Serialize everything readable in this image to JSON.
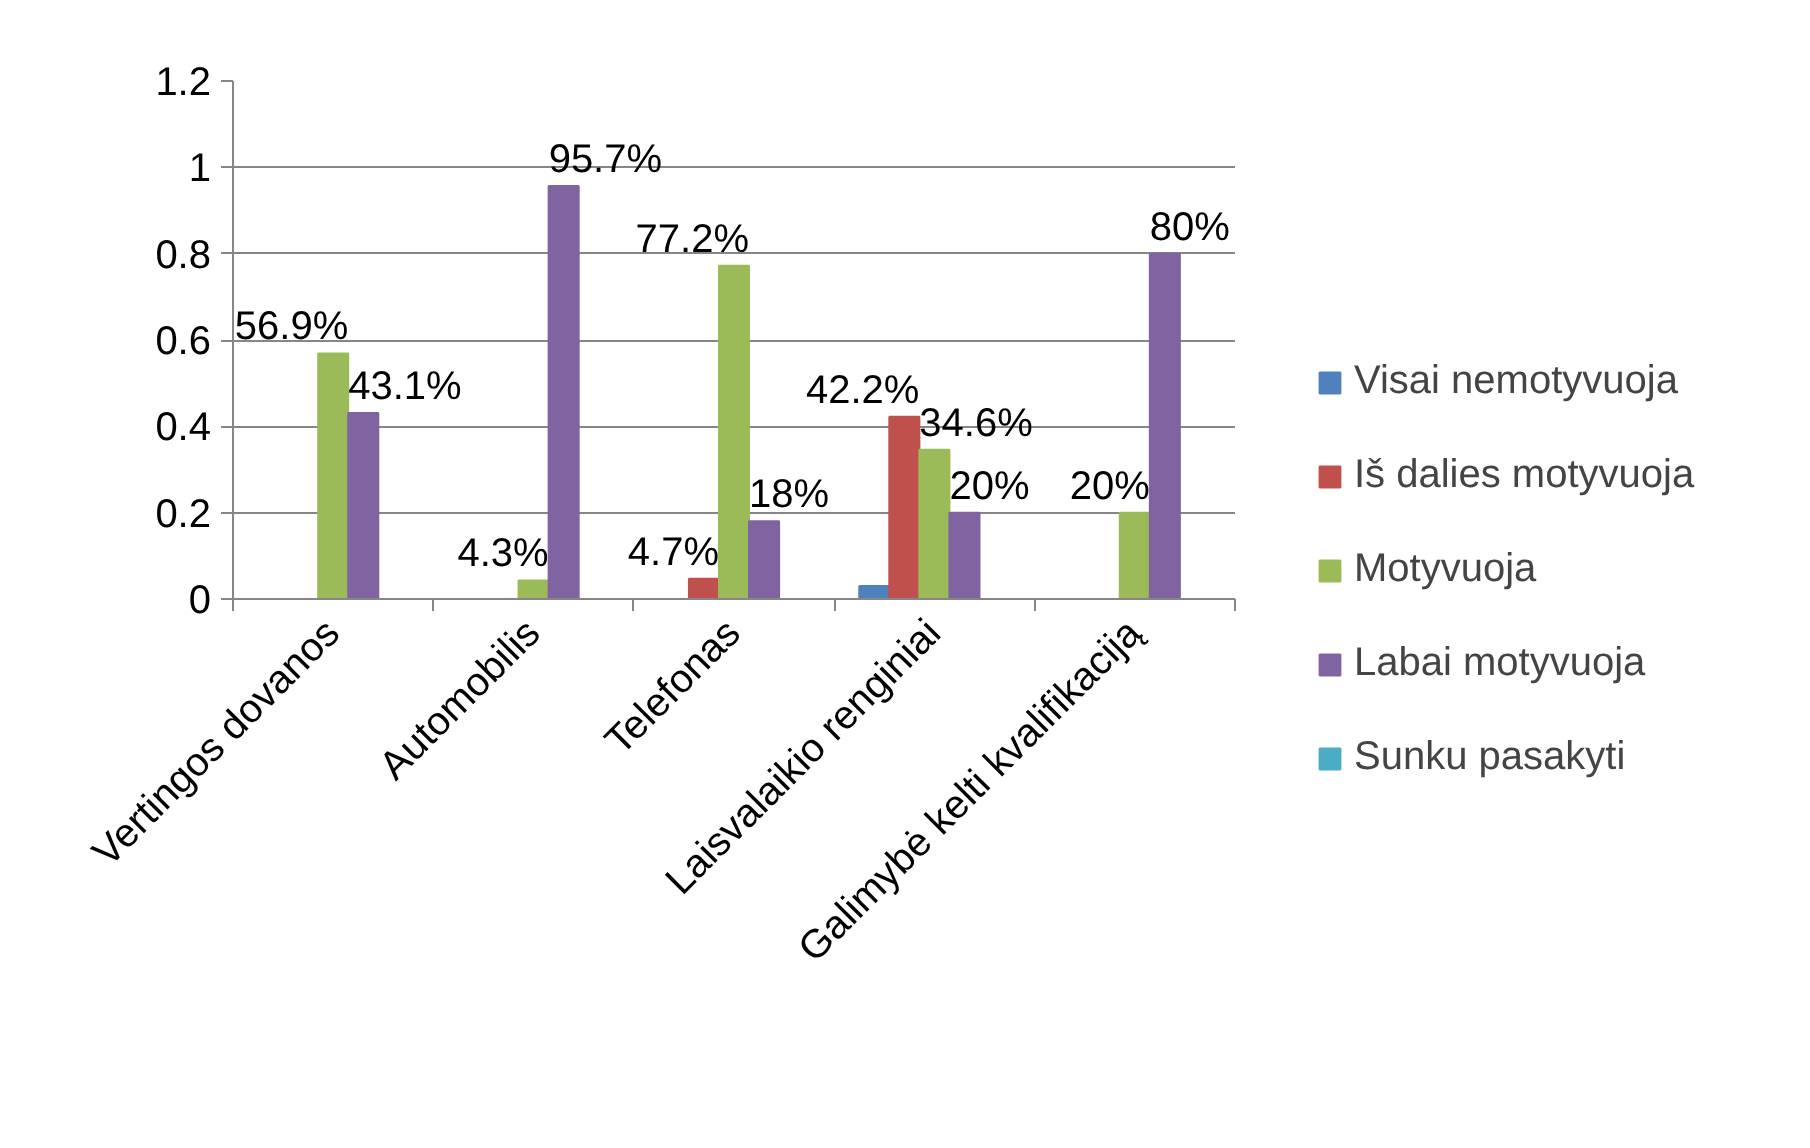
{
  "chart_data": {
    "type": "bar",
    "categories": [
      "Vertingos dovanos",
      "Automobilis",
      "Telefonas",
      "Laisvalaikio renginiai",
      "Galimybė kelti kvalifikaciją"
    ],
    "series": [
      {
        "name": "Visai nemotyvuoja",
        "color": "#4f81bd",
        "values": [
          null,
          null,
          null,
          0.03,
          null
        ],
        "value_labels": [
          null,
          null,
          null,
          null,
          null
        ]
      },
      {
        "name": "Iš dalies motyvuoja",
        "color": "#c0504d",
        "values": [
          null,
          null,
          0.047,
          0.422,
          null
        ],
        "value_labels": [
          null,
          null,
          "4.7%",
          "42.2%",
          null
        ]
      },
      {
        "name": "Motyvuoja",
        "color": "#9bbb59",
        "values": [
          0.569,
          0.043,
          0.772,
          0.346,
          0.2
        ],
        "value_labels": [
          "56.9%",
          "4.3%",
          "77.2%",
          "34.6%",
          "20%"
        ]
      },
      {
        "name": "Labai motyvuoja",
        "color": "#8064a2",
        "values": [
          0.431,
          0.957,
          0.18,
          0.2,
          0.8
        ],
        "value_labels": [
          "43.1%",
          "95.7%",
          "18%",
          "20%",
          "80%"
        ]
      },
      {
        "name": "Sunku pasakyti",
        "color": "#4bacc6",
        "values": [
          null,
          null,
          null,
          null,
          null
        ]
      }
    ],
    "ylim": [
      0,
      1.2
    ],
    "yticks": [
      0,
      0.2,
      0.4,
      0.6,
      0.8,
      1,
      1.2
    ],
    "grid": "y",
    "legend": "right"
  }
}
